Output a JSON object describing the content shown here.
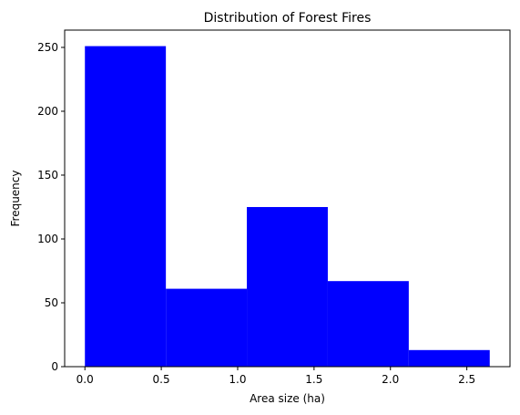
{
  "chart_data": {
    "type": "bar",
    "title": "Distribution of Forest Fires",
    "xlabel": "Area size (ha)",
    "ylabel": "Frequency",
    "bins": [
      {
        "start": 0.0,
        "end": 0.53,
        "count": 251
      },
      {
        "start": 0.53,
        "end": 1.06,
        "count": 61
      },
      {
        "start": 1.06,
        "end": 1.59,
        "count": 125
      },
      {
        "start": 1.59,
        "end": 2.12,
        "count": 67
      },
      {
        "start": 2.12,
        "end": 2.65,
        "count": 13
      }
    ],
    "xlim": [
      -0.1325,
      2.7825
    ],
    "ylim": [
      0,
      263.55
    ],
    "xticks": [
      0.0,
      0.5,
      1.0,
      1.5,
      2.0,
      2.5
    ],
    "xtick_labels": [
      "0.0",
      "0.5",
      "1.0",
      "1.5",
      "2.0",
      "2.5"
    ],
    "yticks": [
      0,
      50,
      100,
      150,
      200,
      250
    ],
    "ytick_labels": [
      "0",
      "50",
      "100",
      "150",
      "200",
      "250"
    ],
    "bar_color": "#0000ff",
    "grid": false,
    "legend": "none"
  }
}
